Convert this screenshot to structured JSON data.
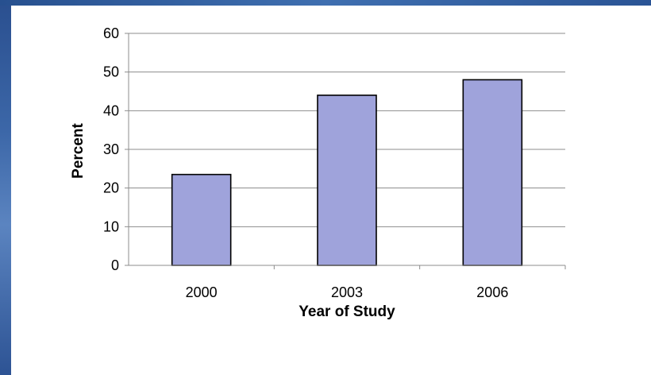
{
  "chart_data": {
    "type": "bar",
    "categories": [
      "2000",
      "2003",
      "2006"
    ],
    "values": [
      23.5,
      44,
      48
    ],
    "xlabel": "Year of Study",
    "ylabel": "Percent",
    "ylim": [
      0,
      60
    ],
    "yticks": [
      "0",
      "10",
      "20",
      "30",
      "40",
      "50",
      "60"
    ],
    "grid": true,
    "legend": "none",
    "colors": {
      "bar_fill": "#9fa3db",
      "bar_stroke": "#000000",
      "grid": "#8c8c8c",
      "axis": "#8c8c8c"
    }
  }
}
